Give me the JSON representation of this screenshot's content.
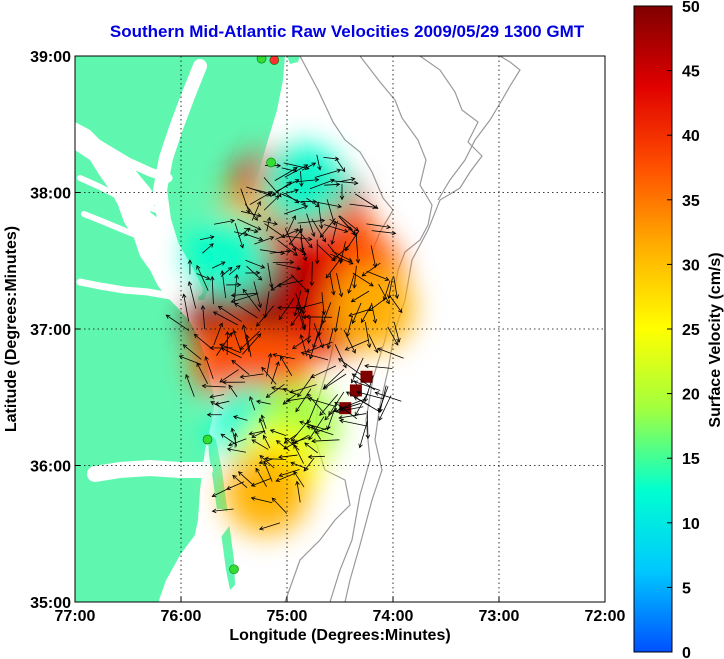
{
  "title": "Southern Mid-Atlantic Raw Velocities 2009/05/29 1300 GMT",
  "x_axis": {
    "label": "Longitude (Degrees:Minutes)",
    "ticks": [
      "77:00",
      "76:00",
      "75:00",
      "74:00",
      "73:00",
      "72:00"
    ],
    "range": [
      -77,
      -72
    ]
  },
  "y_axis": {
    "label": "Latitude (Degrees:Minutes)",
    "ticks": [
      "39:00",
      "38:00",
      "37:00",
      "36:00",
      "35:00"
    ],
    "range": [
      35,
      39
    ]
  },
  "colorbar": {
    "label": "Surface Velocity (cm/s)",
    "ticks": [
      "0",
      "5",
      "10",
      "15",
      "20",
      "25",
      "30",
      "35",
      "40",
      "45",
      "50"
    ],
    "range": [
      0,
      50
    ],
    "colors": [
      "#0050ff",
      "#00c8ff",
      "#00ffd0",
      "#a0ff40",
      "#ffff00",
      "#ffb000",
      "#ff5000",
      "#e00000",
      "#800000"
    ]
  },
  "colors": {
    "land": "#5ff7b0",
    "water": "#ffffff",
    "bathymetry": "#999999",
    "grid": "#000000",
    "site_marker": "#33dd33",
    "site_marker_red": "#ff3030"
  },
  "chart_data": {
    "type": "heatmap",
    "description_units": "longitude/latitude degrees, velocity cm/s",
    "fields": [
      {
        "lon": -75.15,
        "lat": 38.0,
        "speed": 45
      },
      {
        "lon": -74.7,
        "lat": 37.9,
        "speed": 48
      },
      {
        "lon": -74.5,
        "lat": 37.6,
        "speed": 40
      },
      {
        "lon": -74.3,
        "lat": 37.4,
        "speed": 35
      },
      {
        "lon": -75.35,
        "lat": 37.7,
        "speed": 30
      },
      {
        "lon": -74.9,
        "lat": 37.6,
        "speed": 42
      },
      {
        "lon": -75.0,
        "lat": 37.2,
        "speed": 48
      },
      {
        "lon": -75.55,
        "lat": 37.05,
        "speed": 50
      },
      {
        "lon": -74.6,
        "lat": 37.1,
        "speed": 45
      },
      {
        "lon": -74.2,
        "lat": 37.15,
        "speed": 30
      },
      {
        "lon": -75.5,
        "lat": 36.75,
        "speed": 38
      },
      {
        "lon": -75.15,
        "lat": 36.7,
        "speed": 35
      },
      {
        "lon": -75.35,
        "lat": 36.3,
        "speed": 12
      },
      {
        "lon": -74.9,
        "lat": 36.3,
        "speed": 18
      },
      {
        "lon": -75.1,
        "lat": 36.0,
        "speed": 25
      },
      {
        "lon": -75.2,
        "lat": 35.8,
        "speed": 32
      },
      {
        "lon": -75.55,
        "lat": 37.55,
        "speed": 12
      },
      {
        "lon": -74.85,
        "lat": 38.05,
        "speed": 15
      },
      {
        "lon": -74.35,
        "lat": 36.55,
        "speed": 50
      },
      {
        "lon": -74.25,
        "lat": 36.65,
        "speed": 50
      },
      {
        "lon": -74.45,
        "lat": 36.42,
        "speed": 50
      }
    ],
    "radar_sites": [
      {
        "lon": -75.12,
        "lat": 38.97,
        "color": "red"
      },
      {
        "lon": -75.24,
        "lat": 38.98,
        "color": "green"
      },
      {
        "lon": -75.15,
        "lat": 38.22,
        "color": "green"
      },
      {
        "lon": -75.75,
        "lat": 36.19,
        "color": "green"
      },
      {
        "lon": -75.5,
        "lat": 35.24,
        "color": "green"
      }
    ]
  }
}
